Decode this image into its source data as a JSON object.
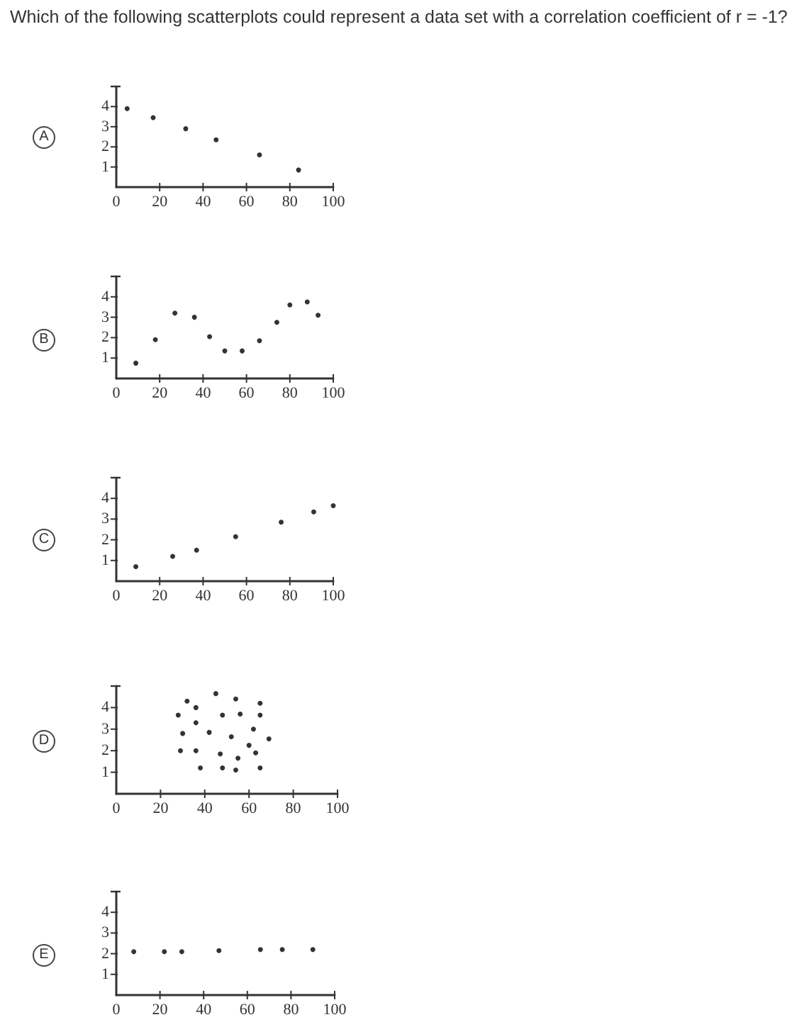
{
  "chart_data": [
    {
      "type": "scatter",
      "title": "A",
      "annotations": [
        "Which of the following scatterplots could represent a data set with a correlation coefficient of r = -1?"
      ],
      "x": [
        5,
        17,
        32,
        46,
        66,
        84
      ],
      "values": [
        3.9,
        3.45,
        2.9,
        2.35,
        1.6,
        0.85
      ],
      "color": "#000000",
      "marker": "circle",
      "xlim": [
        0,
        100
      ],
      "xticks": [
        0,
        20,
        40,
        60,
        80,
        100
      ],
      "ylim": [
        0,
        5
      ],
      "yticks": [
        1,
        2,
        3,
        4
      ]
    },
    {
      "type": "scatter",
      "title": "B",
      "x": [
        9,
        18,
        27,
        36,
        43,
        50,
        58,
        66,
        74,
        80,
        88,
        93
      ],
      "values": [
        0.75,
        1.9,
        3.2,
        3.0,
        2.05,
        1.35,
        1.35,
        1.85,
        2.75,
        3.6,
        3.75,
        3.1
      ],
      "color": "#000000",
      "marker": "circle",
      "xlim": [
        0,
        100
      ],
      "xticks": [
        0,
        20,
        40,
        60,
        80,
        100
      ],
      "ylim": [
        0,
        5
      ],
      "yticks": [
        1,
        2,
        3,
        4
      ]
    },
    {
      "type": "scatter",
      "title": "C",
      "x": [
        9,
        26,
        37,
        55,
        76,
        91,
        100
      ],
      "values": [
        0.7,
        1.2,
        1.5,
        2.15,
        2.85,
        3.35,
        3.65
      ],
      "color": "#000000",
      "marker": "circle",
      "xlim": [
        0,
        100
      ],
      "xticks": [
        0,
        20,
        40,
        60,
        80,
        100
      ],
      "ylim": [
        0,
        5
      ],
      "yticks": [
        1,
        2,
        3,
        4
      ]
    },
    {
      "type": "scatter",
      "title": "D",
      "x": [
        28,
        32,
        36,
        45,
        54,
        65,
        30,
        36,
        48,
        56,
        65,
        42,
        52,
        62,
        69,
        29,
        36,
        47,
        60,
        63,
        55,
        38,
        48,
        54,
        65
      ],
      "values": [
        3.65,
        4.3,
        4.0,
        4.65,
        4.4,
        4.2,
        2.8,
        3.3,
        3.65,
        3.7,
        3.65,
        2.85,
        2.65,
        3.0,
        2.55,
        2.0,
        2.0,
        1.85,
        2.25,
        1.9,
        1.65,
        1.2,
        1.2,
        1.1,
        1.2
      ],
      "color": "#000000",
      "marker": "circle",
      "xlim": [
        0,
        100
      ],
      "xticks": [
        0,
        20,
        40,
        60,
        80,
        100
      ],
      "ylim": [
        0,
        5
      ],
      "yticks": [
        1,
        2,
        3,
        4
      ]
    },
    {
      "type": "scatter",
      "title": "E",
      "x": [
        8,
        22,
        30,
        47,
        66,
        76,
        90
      ],
      "values": [
        2.1,
        2.1,
        2.1,
        2.15,
        2.2,
        2.2,
        2.2
      ],
      "color": "#000000",
      "marker": "circle",
      "xlim": [
        0,
        100
      ],
      "xticks": [
        0,
        20,
        40,
        60,
        80,
        100
      ],
      "ylim": [
        0,
        5
      ],
      "yticks": [
        1,
        2,
        3,
        4
      ]
    }
  ]
}
